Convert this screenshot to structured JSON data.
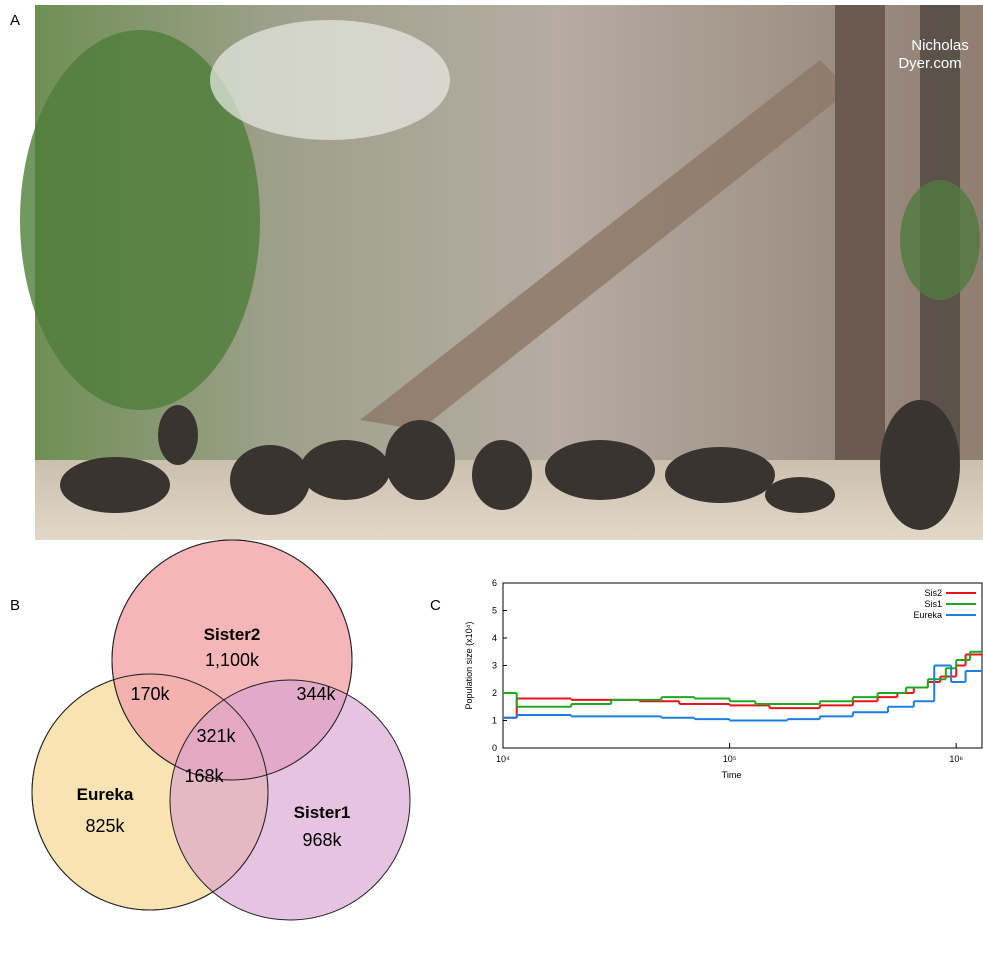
{
  "panels": {
    "a": "A",
    "b": "B",
    "c": "C"
  },
  "photo": {
    "watermark_name": "Nicholas",
    "watermark_site": "Dyer.com"
  },
  "venn": {
    "sets": [
      {
        "name": "Sister2",
        "count": "1,100k"
      },
      {
        "name": "Eureka",
        "count": "825k"
      },
      {
        "name": "Sister1",
        "count": "968k"
      }
    ],
    "overlaps": {
      "sister2_eureka": "170k",
      "sister2_sister1": "344k",
      "eureka_sister1": "168k",
      "all": "321k"
    }
  },
  "chart_data": {
    "type": "line",
    "drawstyle": "steps-post",
    "xscale": "log",
    "xlabel": "Time",
    "ylabel": "Population size (x10⁴)",
    "xlim": [
      10000,
      1300000
    ],
    "ylim": [
      0,
      6
    ],
    "xticks": [
      {
        "value": 10000,
        "label": "10⁴"
      },
      {
        "value": 100000,
        "label": "10⁵"
      },
      {
        "value": 1000000,
        "label": "10⁶"
      }
    ],
    "yticks": [
      0,
      1,
      2,
      3,
      4,
      5,
      6
    ],
    "legend": "upper right",
    "series": [
      {
        "name": "Sis2",
        "color": "#e8141b",
        "x": [
          10000,
          11500,
          20000,
          40000,
          60000,
          100000,
          150000,
          250000,
          350000,
          450000,
          550000,
          650000,
          750000,
          850000,
          1000000,
          1100000
        ],
        "values": [
          1.1,
          1.8,
          1.75,
          1.7,
          1.6,
          1.55,
          1.45,
          1.55,
          1.7,
          1.85,
          2.0,
          2.2,
          2.4,
          2.6,
          3.0,
          3.4
        ]
      },
      {
        "name": "Sis1",
        "color": "#1fa81f",
        "x": [
          10000,
          11500,
          20000,
          30000,
          50000,
          70000,
          100000,
          130000,
          250000,
          350000,
          450000,
          600000,
          750000,
          900000,
          1000000,
          1150000
        ],
        "values": [
          2.0,
          1.5,
          1.6,
          1.75,
          1.85,
          1.8,
          1.7,
          1.6,
          1.7,
          1.85,
          2.0,
          2.2,
          2.5,
          2.9,
          3.2,
          3.5
        ]
      },
      {
        "name": "Eureka",
        "color": "#1c7ee0",
        "x": [
          10000,
          11500,
          20000,
          50000,
          70000,
          100000,
          180000,
          250000,
          350000,
          500000,
          650000,
          800000,
          950000,
          1100000
        ],
        "values": [
          1.1,
          1.2,
          1.15,
          1.1,
          1.05,
          1.0,
          1.05,
          1.15,
          1.3,
          1.5,
          1.7,
          3.0,
          2.4,
          2.8
        ]
      }
    ]
  }
}
